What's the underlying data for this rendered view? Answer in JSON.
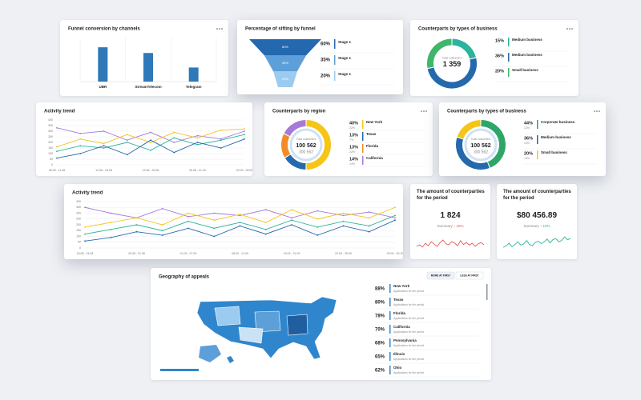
{
  "cards": [
    {
      "type": "bar",
      "title": "Funnel conversion by channels",
      "categories": [
        "UBR",
        "StreamTelecom",
        "Telegram"
      ],
      "values": [
        78,
        65,
        32
      ],
      "color": "#2f79b9",
      "ylim": [
        0,
        100
      ]
    },
    {
      "type": "funnel",
      "title": "Percentage of sifting by funnel",
      "stages": [
        {
          "name": "Stage 1",
          "value": 60,
          "label": "60%",
          "color": "#2468b0"
        },
        {
          "name": "Stage 1",
          "value": 35,
          "label": "35%",
          "color": "#5d9fd8"
        },
        {
          "name": "Stage 1",
          "value": 20,
          "label": "20%",
          "color": "#9ccbf0"
        }
      ]
    },
    {
      "type": "donut",
      "title": "Counterparts by types of business",
      "total_label": "Total customers",
      "total": "1 359",
      "series": [
        {
          "name": "Medium business",
          "value": 15,
          "label": "15%",
          "color": "#2bb39c"
        },
        {
          "name": "Medium business",
          "value": 36,
          "label": "36%",
          "color": "#2569ad"
        },
        {
          "name": "Small business",
          "value": 20,
          "label": "20%",
          "color": "#3fb66b"
        }
      ]
    },
    {
      "type": "line",
      "title": "Activity trend",
      "categories": [
        "05.08 - 11.08",
        null,
        "12.08 - 18.08",
        null,
        "19.08 - 25.08",
        null,
        "26.08 - 01.09",
        null,
        "02.09 - 08.09"
      ],
      "ylim": [
        0,
        400
      ],
      "yticks": [
        0,
        50,
        100,
        150,
        200,
        250,
        300,
        350,
        400
      ],
      "series": [
        {
          "color": "#a77ad6",
          "values": [
            330,
            280,
            300,
            220,
            290,
            200,
            260,
            230,
            300
          ]
        },
        {
          "color": "#f5c518",
          "values": [
            160,
            230,
            190,
            270,
            200,
            290,
            240,
            310,
            320
          ]
        },
        {
          "color": "#2bb59a",
          "values": [
            120,
            170,
            150,
            200,
            130,
            240,
            180,
            220,
            270
          ]
        },
        {
          "color": "#2569ad",
          "values": [
            60,
            100,
            170,
            90,
            220,
            110,
            200,
            150,
            230
          ]
        }
      ]
    },
    {
      "type": "donut",
      "title": "Counterparts by region",
      "total_label": "Total customers",
      "total": "100 562",
      "total2": "300 562",
      "series": [
        {
          "name": "New York",
          "value": 40,
          "label": "40%",
          "note": "22%",
          "color": "#f5c518"
        },
        {
          "name": "Texas",
          "value": 13,
          "label": "13%",
          "note": "7%",
          "color": "#2569ad"
        },
        {
          "name": "Florida",
          "value": 13,
          "label": "13%",
          "note": "22%",
          "color": "#f28c28"
        },
        {
          "name": "California",
          "value": 14,
          "label": "14%",
          "note": "14%",
          "color": "#a77ad6"
        }
      ]
    },
    {
      "type": "donut",
      "title": "Counterparts by types of business",
      "total_label": "Total customers",
      "total": "100 562",
      "total2": "300 562",
      "series": [
        {
          "name": "Corporate business",
          "value": 44,
          "label": "44%",
          "note": "13%",
          "color": "#2ea66a"
        },
        {
          "name": "Medium business",
          "value": 36,
          "label": "36%",
          "note": "13%",
          "color": "#2569ad"
        },
        {
          "name": "Small business",
          "value": 20,
          "label": "20%",
          "note": "13%",
          "color": "#f5c518"
        }
      ]
    },
    {
      "type": "line",
      "title": "Activity trend",
      "categories": [
        "18.08 - 24.08",
        null,
        "25.08 - 31.08",
        null,
        "01.09 - 07.09",
        null,
        "08.09 - 14.09",
        null,
        "15.09 - 21.09",
        null,
        "22.09 - 28.09",
        null,
        "29.09 - 05.10"
      ],
      "ylim": [
        0,
        400
      ],
      "yticks": [
        0,
        50,
        100,
        150,
        200,
        250,
        300,
        350,
        400
      ],
      "series": [
        {
          "color": "#a77ad6",
          "values": [
            350,
            300,
            260,
            340,
            270,
            300,
            280,
            330,
            260,
            320,
            280,
            310,
            260
          ]
        },
        {
          "color": "#f5c518",
          "values": [
            180,
            220,
            260,
            200,
            300,
            240,
            290,
            220,
            330,
            250,
            300,
            260,
            350
          ]
        },
        {
          "color": "#2bb59a",
          "values": [
            120,
            160,
            200,
            150,
            230,
            170,
            220,
            160,
            240,
            180,
            230,
            190,
            280
          ]
        },
        {
          "color": "#2569ad",
          "values": [
            60,
            90,
            140,
            110,
            170,
            100,
            190,
            120,
            200,
            110,
            190,
            140,
            240
          ]
        }
      ]
    },
    {
      "type": "sparkline",
      "title": "The amount of counterparties for the period",
      "value": "1 824",
      "summary": "Summary",
      "change": "↓ 15%",
      "color": "#e05a5a",
      "ylim": [
        20,
        80
      ],
      "values": [
        40,
        45,
        38,
        50,
        42,
        55,
        47,
        40,
        52,
        60,
        48,
        45,
        55,
        50,
        42,
        58,
        46,
        52,
        44,
        50,
        40,
        48,
        52,
        45
      ]
    },
    {
      "type": "sparkline",
      "title": "The amount of counterparties for the period",
      "value": "$80 456.89",
      "summary": "Summary",
      "change": "↑ 10%",
      "color": "#2bb59a",
      "ylim": [
        10,
        80
      ],
      "values": [
        30,
        35,
        45,
        32,
        40,
        50,
        38,
        42,
        55,
        40,
        36,
        48,
        52,
        44,
        50,
        60,
        46,
        58,
        62,
        50,
        55,
        68,
        58,
        62
      ]
    },
    {
      "type": "map",
      "title": "Geography of appeals",
      "buttons": [
        "MORE AT FIRST",
        "LESS AT FIRST"
      ],
      "items": [
        {
          "name": "New York",
          "label": "88%",
          "sub": "Applications for the period"
        },
        {
          "name": "Texas",
          "label": "80%",
          "sub": "Applications for the period"
        },
        {
          "name": "Florida",
          "label": "78%",
          "sub": "Applications for the period"
        },
        {
          "name": "California",
          "label": "70%",
          "sub": "Applications for the period"
        },
        {
          "name": "Pennsylvania",
          "label": "68%",
          "sub": "Applications for the period"
        },
        {
          "name": "Illinois",
          "label": "65%",
          "sub": "Applications for the period"
        },
        {
          "name": "Ohio",
          "label": "62%",
          "sub": "Applications for the period"
        }
      ]
    }
  ]
}
